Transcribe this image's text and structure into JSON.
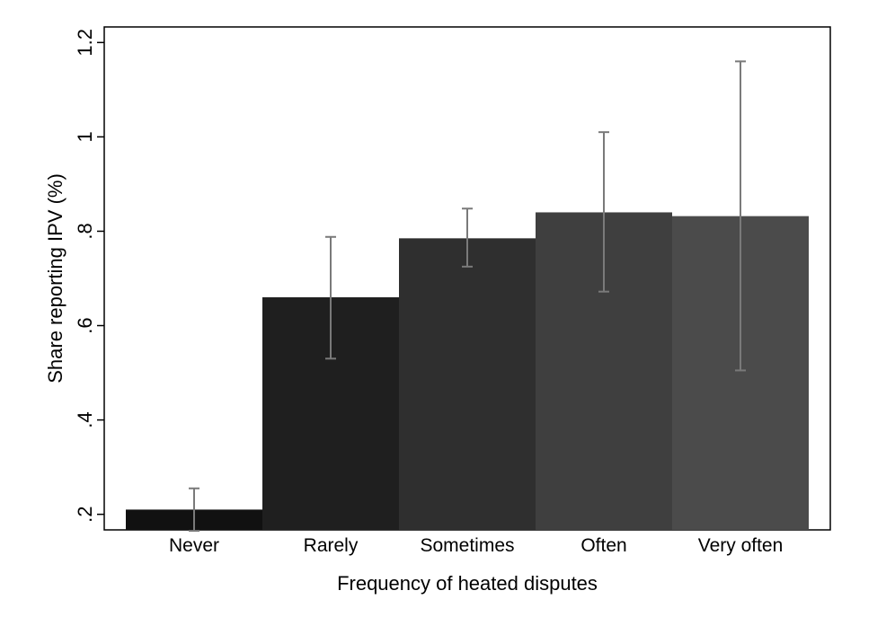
{
  "chart_data": {
    "type": "bar",
    "categories": [
      "Never",
      "Rarely",
      "Sometimes",
      "Often",
      "Very often"
    ],
    "values": [
      0.21,
      0.66,
      0.785,
      0.84,
      0.832
    ],
    "error_bars": {
      "lower": [
        0.165,
        0.53,
        0.725,
        0.672,
        0.505
      ],
      "upper": [
        0.255,
        0.788,
        0.848,
        1.01,
        1.16
      ]
    },
    "bar_colors": [
      "#111111",
      "#1f1f1f",
      "#2f2f2f",
      "#3f3f3f",
      "#4b4b4b"
    ],
    "error_bar_color": "#7a7a7a",
    "xlabel": "Frequency of heated disputes",
    "ylabel": "Share reporting IPV (%)",
    "ylim": [
      0.167,
      1.233
    ],
    "yticks": [
      0.2,
      0.4,
      0.6,
      0.8,
      1.0,
      1.2
    ],
    "ytick_labels": [
      ".2",
      ".4",
      ".6",
      ".8",
      "1",
      "1.2"
    ],
    "grid": false,
    "legend": "none"
  }
}
